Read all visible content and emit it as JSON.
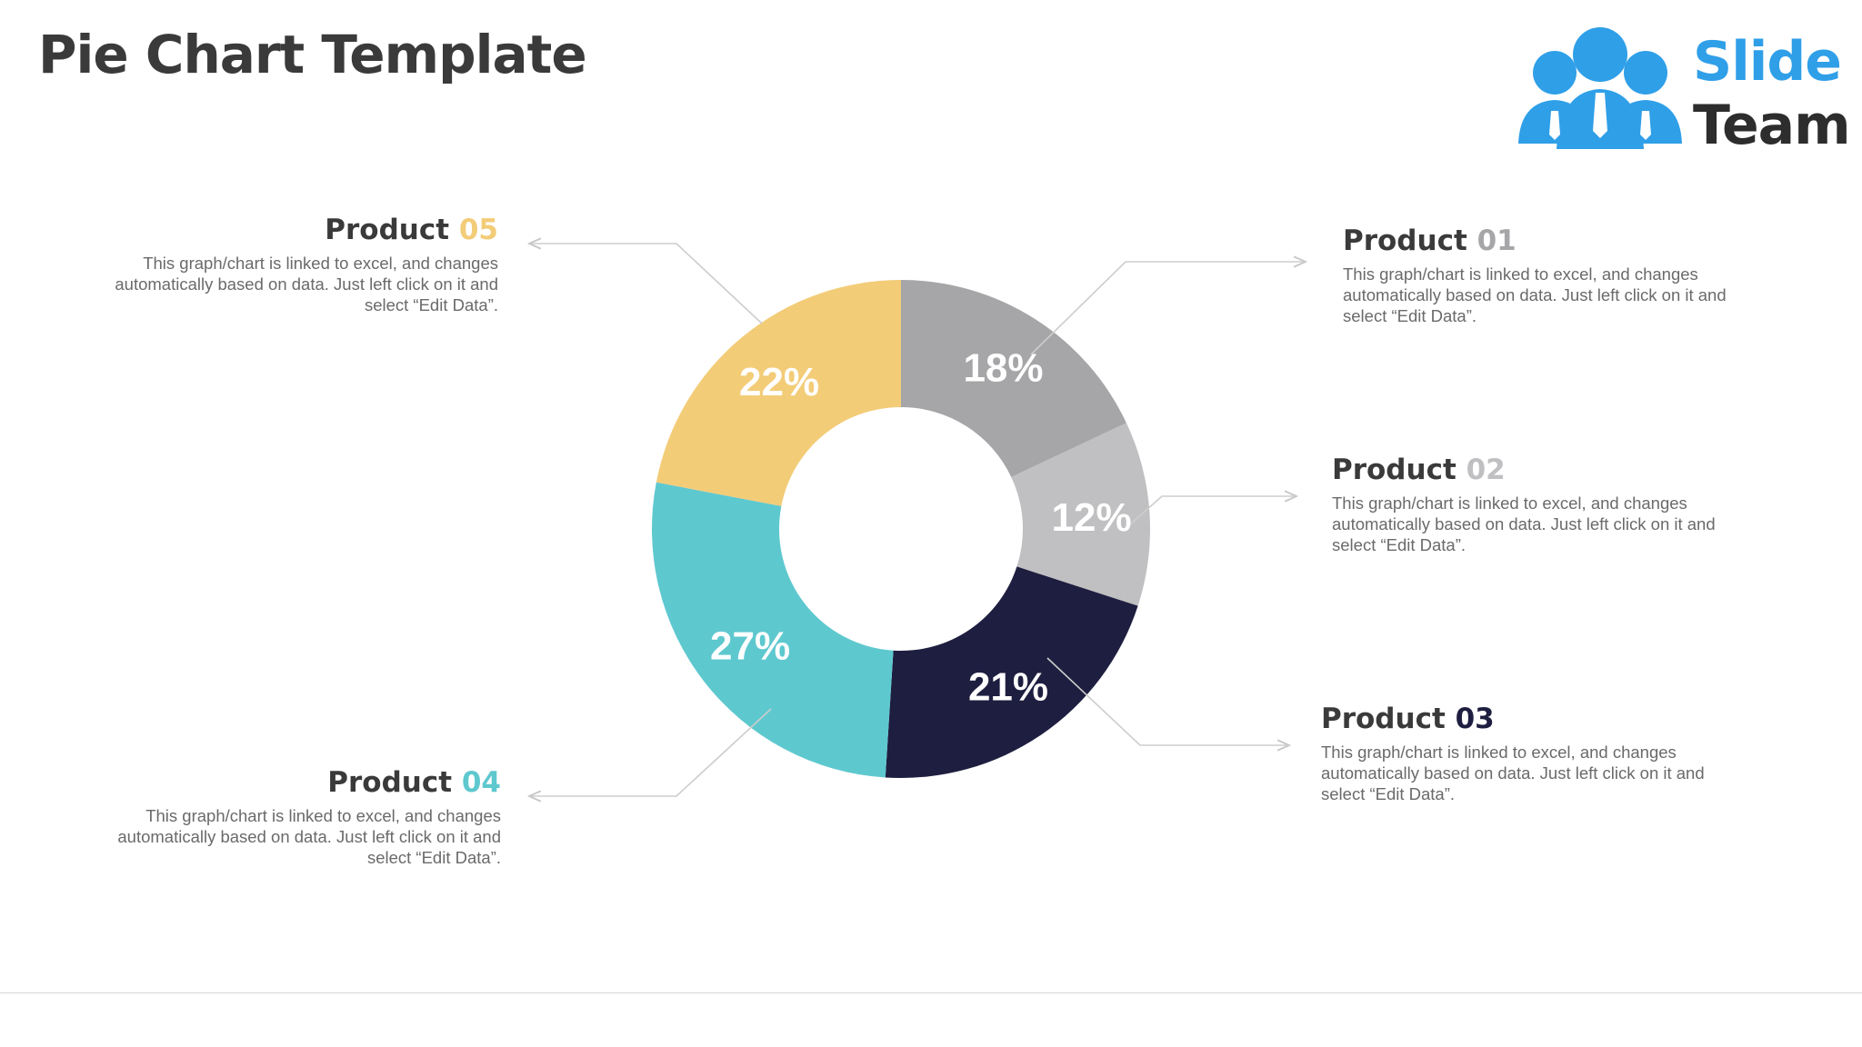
{
  "page": {
    "title": "Pie Chart Template"
  },
  "logo": {
    "line1": "Slide",
    "line2": "Team",
    "icon": "people-group-icon",
    "colors": {
      "primary": "#2f9fe8",
      "text": "#2d2d2d"
    }
  },
  "chart_data": {
    "type": "pie",
    "variant": "donut",
    "slices": [
      {
        "label": "Product 01",
        "value": 18,
        "display": "18%",
        "color": "#a6a5a7"
      },
      {
        "label": "Product 02",
        "value": 12,
        "display": "12%",
        "color": "#c0bfc1"
      },
      {
        "label": "Product 03",
        "value": 21,
        "display": "21%",
        "color": "#1e1e40"
      },
      {
        "label": "Product 04",
        "value": 27,
        "display": "27%",
        "color": "#5ec8cf"
      },
      {
        "label": "Product 05",
        "value": 22,
        "display": "22%",
        "color": "#f3cc78"
      }
    ]
  },
  "labels": {
    "p01": {
      "word": "Product",
      "num": "01",
      "num_color": "#a6a5a7",
      "desc": "This graph/chart is linked to excel, and changes automatically based on data. Just left click on it and select “Edit Data”."
    },
    "p02": {
      "word": "Product",
      "num": "02",
      "num_color": "#c0bfc1",
      "desc": "This graph/chart is linked to excel, and changes automatically based on data. Just left click on it and select “Edit Data”."
    },
    "p03": {
      "word": "Product",
      "num": "03",
      "num_color": "#1e1e40",
      "desc": "This graph/chart is linked to excel, and changes automatically based on data. Just left click on it and select “Edit Data”."
    },
    "p04": {
      "word": "Product",
      "num": "04",
      "num_color": "#5ec8cf",
      "desc": "This graph/chart is linked to excel, and changes automatically based on data. Just left click on it and select “Edit Data”."
    },
    "p05": {
      "word": "Product",
      "num": "05",
      "num_color": "#f3cc78",
      "desc": "This graph/chart is linked to excel, and changes automatically based on data. Just left click on it and select “Edit Data”."
    }
  }
}
